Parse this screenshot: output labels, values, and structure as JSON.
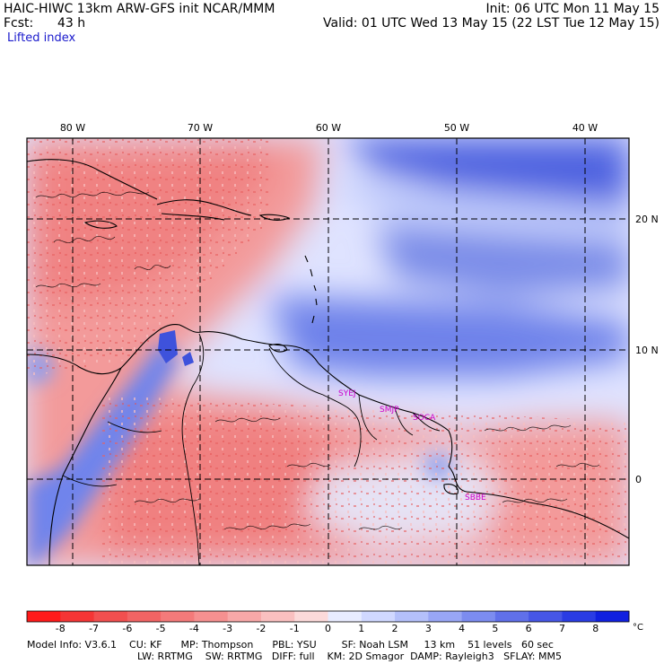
{
  "header": {
    "title": "HAIC-HIWC 13km ARW-GFS init   NCAR/MMM",
    "fcst_label": "Fcst:",
    "fcst_value": "43 h",
    "field": "Lifted index",
    "init": "Init: 06 UTC Mon 11 May 15",
    "valid": "Valid: 01 UTC Wed 13 May 15 (22 LST Tue 12 May 15)"
  },
  "map": {
    "lon_labels": [
      "80 W",
      "70 W",
      "60 W",
      "50 W",
      "40 W"
    ],
    "lat_labels": [
      "20 N",
      "10 N",
      "0"
    ],
    "stations": [
      "SYEJ",
      "SMJP",
      "SOCA",
      "SBBE"
    ],
    "colors": {
      "station": "#cc00cc",
      "ocean_blue": "#8fa0ee",
      "deep_blue": "#4a5fe0",
      "light_red": "#f7a0a0",
      "coast": "#000000"
    }
  },
  "colorbar": {
    "labels": [
      "-8",
      "-7",
      "-6",
      "-5",
      "-4",
      "-3",
      "-2",
      "-1",
      "0",
      "1",
      "2",
      "3",
      "4",
      "5",
      "6",
      "7",
      "8"
    ],
    "unit": "°C",
    "colors": [
      "#ff1a1a",
      "#f53535",
      "#f24f4f",
      "#f26464",
      "#f47a7a",
      "#f69090",
      "#f8a8a8",
      "#fac0c0",
      "#fcdada",
      "#e8ecff",
      "#d0d8ff",
      "#b4c0fa",
      "#98a6f5",
      "#7c8cf0",
      "#6070ea",
      "#4656e6",
      "#2a3ce4",
      "#1020e0"
    ]
  },
  "footer": {
    "line1": "Model Info: V3.6.1    CU: KF      MP: Thompson      PBL: YSU        SF: Noah LSM     13 km    51 levels   60 sec",
    "line2": "LW: RRTMG    SW: RRTMG   DIFF: full    KM: 2D Smagor  DAMP: Rayleigh3   SFLAY: MM5"
  }
}
